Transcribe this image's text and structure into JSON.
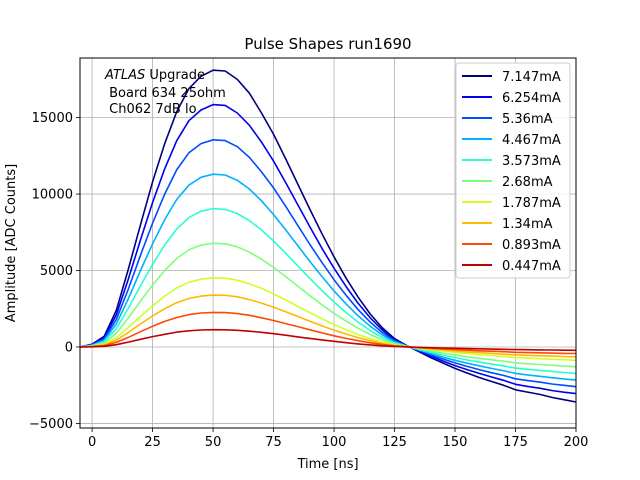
{
  "chart_data": {
    "type": "line",
    "title": "Pulse Shapes run1690",
    "xlabel": "Time [ns]",
    "ylabel": "Amplitude [ADC Counts]",
    "xlim": [
      -5,
      200
    ],
    "ylim": [
      -5300,
      18900
    ],
    "xticks": [
      0,
      25,
      50,
      75,
      100,
      125,
      150,
      175,
      200
    ],
    "yticks": [
      -5000,
      0,
      5000,
      10000,
      15000
    ],
    "grid": true,
    "legend_position": "top-right",
    "annotation": {
      "atlas": "ATLAS",
      "line1_rest": " Upgrade",
      "line2": " Board 634 25ohm",
      "line3": " Ch062 7dB lo"
    },
    "x": [
      -5,
      0,
      5,
      10,
      15,
      20,
      25,
      30,
      35,
      40,
      45,
      50,
      55,
      60,
      65,
      70,
      75,
      80,
      85,
      90,
      95,
      100,
      105,
      110,
      115,
      120,
      125,
      130,
      135,
      140,
      145,
      150,
      155,
      160,
      165,
      170,
      175,
      180,
      185,
      190,
      195,
      200
    ],
    "series": [
      {
        "name": "7.147mA",
        "color": "#00007f",
        "values": [
          0,
          180,
          700,
          2400,
          5100,
          8000,
          10800,
          13300,
          15400,
          16900,
          17700,
          18100,
          18050,
          17500,
          16600,
          15300,
          13900,
          12300,
          10650,
          9000,
          7400,
          5900,
          4500,
          3250,
          2150,
          1250,
          550,
          100,
          -300,
          -700,
          -1050,
          -1400,
          -1700,
          -2000,
          -2250,
          -2500,
          -2800,
          -2950,
          -3100,
          -3300,
          -3450,
          -3600
        ]
      },
      {
        "name": "6.254mA",
        "color": "#0000f1",
        "values": [
          0,
          160,
          620,
          2100,
          4450,
          7000,
          9450,
          11650,
          13500,
          14800,
          15500,
          15850,
          15800,
          15300,
          14500,
          13400,
          12150,
          10750,
          9300,
          7850,
          6450,
          5150,
          3950,
          2850,
          1900,
          1100,
          480,
          90,
          -260,
          -600,
          -920,
          -1220,
          -1480,
          -1730,
          -1960,
          -2180,
          -2440,
          -2580,
          -2700,
          -2850,
          -2960,
          -3050
        ]
      },
      {
        "name": "5.36mA",
        "color": "#004dff",
        "values": [
          0,
          140,
          530,
          1800,
          3800,
          6000,
          8100,
          10000,
          11600,
          12700,
          13300,
          13550,
          13500,
          13100,
          12400,
          11450,
          10400,
          9200,
          7950,
          6700,
          5520,
          4400,
          3380,
          2440,
          1620,
          940,
          410,
          80,
          -220,
          -520,
          -790,
          -1040,
          -1270,
          -1480,
          -1680,
          -1860,
          -2080,
          -2200,
          -2300,
          -2420,
          -2510,
          -2600
        ]
      },
      {
        "name": "4.467mA",
        "color": "#00b1ff",
        "values": [
          0,
          115,
          440,
          1500,
          3170,
          5000,
          6750,
          8330,
          9650,
          10580,
          11100,
          11300,
          11250,
          10900,
          10330,
          9560,
          8660,
          7660,
          6630,
          5590,
          4600,
          3670,
          2820,
          2030,
          1350,
          780,
          340,
          60,
          -190,
          -430,
          -660,
          -870,
          -1060,
          -1230,
          -1400,
          -1550,
          -1730,
          -1830,
          -1920,
          -2010,
          -2090,
          -2170
        ]
      },
      {
        "name": "3.573mA",
        "color": "#29ffce",
        "values": [
          0,
          92,
          350,
          1200,
          2540,
          4000,
          5400,
          6660,
          7720,
          8460,
          8880,
          9050,
          9000,
          8730,
          8260,
          7650,
          6930,
          6130,
          5300,
          4470,
          3680,
          2940,
          2250,
          1620,
          1080,
          620,
          270,
          50,
          -150,
          -350,
          -530,
          -690,
          -850,
          -990,
          -1120,
          -1240,
          -1380,
          -1460,
          -1530,
          -1600,
          -1670,
          -1730
        ]
      },
      {
        "name": "2.68mA",
        "color": "#7dff7a",
        "values": [
          0,
          69,
          260,
          900,
          1900,
          3000,
          4050,
          5000,
          5790,
          6350,
          6660,
          6780,
          6750,
          6550,
          6200,
          5740,
          5200,
          4600,
          3980,
          3350,
          2760,
          2200,
          1690,
          1220,
          810,
          470,
          200,
          40,
          -110,
          -260,
          -400,
          -520,
          -640,
          -740,
          -840,
          -930,
          -1040,
          -1100,
          -1150,
          -1200,
          -1250,
          -1300
        ]
      },
      {
        "name": "1.787mA",
        "color": "#ceff29",
        "values": [
          0,
          46,
          175,
          600,
          1270,
          2000,
          2700,
          3330,
          3860,
          4230,
          4440,
          4520,
          4500,
          4370,
          4130,
          3830,
          3470,
          3070,
          2650,
          2240,
          1840,
          1470,
          1130,
          810,
          540,
          310,
          140,
          25,
          -75,
          -170,
          -260,
          -350,
          -430,
          -500,
          -560,
          -620,
          -690,
          -730,
          -770,
          -800,
          -830,
          -870
        ]
      },
      {
        "name": "1.34mA",
        "color": "#ffb900",
        "values": [
          0,
          34,
          130,
          450,
          950,
          1500,
          2030,
          2500,
          2900,
          3170,
          3330,
          3390,
          3380,
          3280,
          3100,
          2870,
          2600,
          2300,
          1990,
          1680,
          1380,
          1100,
          850,
          610,
          410,
          230,
          100,
          20,
          -55,
          -130,
          -200,
          -260,
          -320,
          -370,
          -420,
          -470,
          -520,
          -550,
          -580,
          -600,
          -630,
          -650
        ]
      },
      {
        "name": "0.893mA",
        "color": "#ff4800",
        "values": [
          0,
          23,
          88,
          300,
          630,
          1000,
          1350,
          1670,
          1930,
          2120,
          2220,
          2260,
          2250,
          2180,
          2070,
          1910,
          1730,
          1530,
          1330,
          1120,
          920,
          730,
          560,
          410,
          270,
          160,
          70,
          10,
          -40,
          -90,
          -130,
          -170,
          -210,
          -250,
          -280,
          -310,
          -350,
          -370,
          -380,
          -400,
          -420,
          -430
        ]
      },
      {
        "name": "0.447mA",
        "color": "#bf0000",
        "values": [
          0,
          12,
          44,
          150,
          320,
          500,
          680,
          830,
          970,
          1060,
          1110,
          1130,
          1120,
          1090,
          1030,
          960,
          870,
          770,
          660,
          560,
          460,
          370,
          280,
          200,
          135,
          78,
          34,
          6,
          -20,
          -45,
          -65,
          -85,
          -105,
          -120,
          -140,
          -155,
          -170,
          -180,
          -190,
          -200,
          -210,
          -220
        ]
      }
    ]
  }
}
